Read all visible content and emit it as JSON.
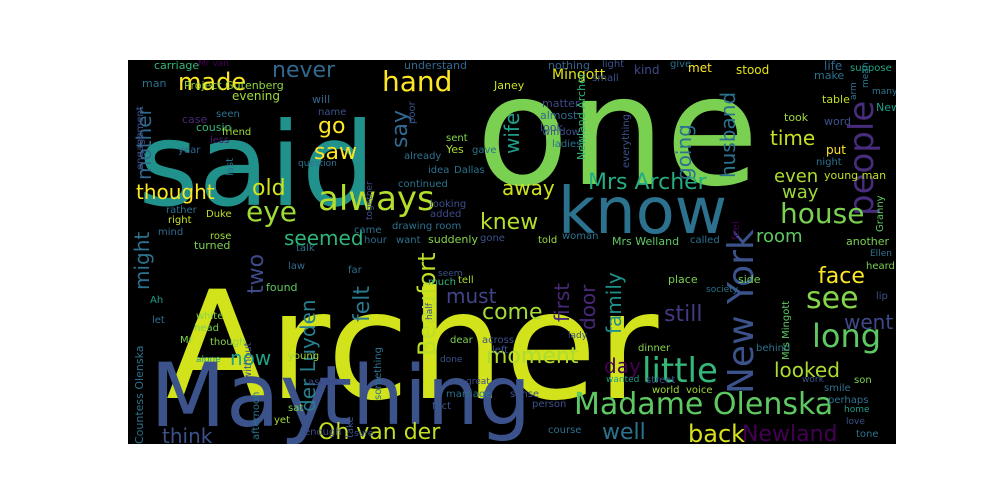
{
  "words": [
    {
      "text": "Archer",
      "color": "#d2e21b"
    },
    {
      "text": "said",
      "color": "#21918c"
    },
    {
      "text": "one",
      "color": "#7ad151"
    },
    {
      "text": "May",
      "color": "#3b528b"
    },
    {
      "text": "thing",
      "color": "#3b528b"
    },
    {
      "text": "know",
      "color": "#2c728e"
    },
    {
      "text": "Madame Olenska",
      "color": "#5ec962"
    },
    {
      "text": "little",
      "color": "#35b779"
    },
    {
      "text": "always",
      "color": "#b5de2b"
    },
    {
      "text": "people",
      "color": "#472d7b"
    },
    {
      "text": "New York",
      "color": "#3b528b"
    },
    {
      "text": "made",
      "color": "#fde725"
    },
    {
      "text": "hand",
      "color": "#fde725"
    },
    {
      "text": "never",
      "color": "#31688e"
    },
    {
      "text": "house",
      "color": "#7ad151"
    },
    {
      "text": "eye",
      "color": "#a0da39"
    },
    {
      "text": "see",
      "color": "#86d549"
    },
    {
      "text": "long",
      "color": "#5ec962"
    },
    {
      "text": "well",
      "color": "#2c728e"
    },
    {
      "text": "back",
      "color": "#d8e219"
    },
    {
      "text": "Newland",
      "color": "#440154"
    },
    {
      "text": "Oh van der",
      "color": "#c2df23"
    },
    {
      "text": "think",
      "color": "#3b528b"
    },
    {
      "text": "Mrs Archer",
      "color": "#25ac82"
    },
    {
      "text": "thought",
      "color": "#fde725"
    },
    {
      "text": "knew",
      "color": "#b5de2b"
    },
    {
      "text": "Beaufort",
      "color": "#bddf26"
    },
    {
      "text": "moment",
      "color": "#addc30"
    },
    {
      "text": "come",
      "color": "#a5db36"
    },
    {
      "text": "face",
      "color": "#fde725"
    },
    {
      "text": "went",
      "color": "#3e4989"
    },
    {
      "text": "looked",
      "color": "#addc30"
    },
    {
      "text": "still",
      "color": "#443983"
    },
    {
      "text": "mother",
      "color": "#31688e"
    },
    {
      "text": "might",
      "color": "#2c728e"
    },
    {
      "text": "husband",
      "color": "#2c728e"
    },
    {
      "text": "go",
      "color": "#fde725"
    },
    {
      "text": "saw",
      "color": "#fde725"
    },
    {
      "text": "say",
      "color": "#31688e"
    },
    {
      "text": "wife",
      "color": "#1f9e89"
    },
    {
      "text": "going",
      "color": "#2c728e"
    },
    {
      "text": "time",
      "color": "#c8e020"
    },
    {
      "text": "even",
      "color": "#addc30"
    },
    {
      "text": "way",
      "color": "#9bd93c"
    },
    {
      "text": "away",
      "color": "#cde11d"
    },
    {
      "text": "old",
      "color": "#d2e21b"
    },
    {
      "text": "seemed",
      "color": "#2fb47c"
    },
    {
      "text": "two",
      "color": "#3e4989"
    },
    {
      "text": "now",
      "color": "#1fa187"
    },
    {
      "text": "felt",
      "color": "#2a788e"
    },
    {
      "text": "must",
      "color": "#414487"
    },
    {
      "text": "first",
      "color": "#482878"
    },
    {
      "text": "door",
      "color": "#482878"
    },
    {
      "text": "family",
      "color": "#21918c"
    },
    {
      "text": "day",
      "color": "#440154"
    },
    {
      "text": "der Luyden",
      "color": "#277f8e"
    },
    {
      "text": "room",
      "color": "#5ec962"
    },
    {
      "text": "Mingott",
      "color": "#dfe318"
    },
    {
      "text": "nothing",
      "color": "#33638d"
    },
    {
      "text": "kind",
      "color": "#3e4989"
    },
    {
      "text": "stood",
      "color": "#e2e418"
    },
    {
      "text": "life",
      "color": "#31688e"
    },
    {
      "text": "suppose",
      "color": "#20a486"
    },
    {
      "text": "carriage",
      "color": "#35b779"
    },
    {
      "text": "Mr van",
      "color": "#440154"
    },
    {
      "text": "understand",
      "color": "#31688e"
    },
    {
      "text": "light",
      "color": "#3b528b"
    },
    {
      "text": "give",
      "color": "#2c728e"
    },
    {
      "text": "met",
      "color": "#fde725"
    },
    {
      "text": "Project Gutenberg",
      "color": "#8fd744"
    },
    {
      "text": "man",
      "color": "#2c728e"
    },
    {
      "text": "Janey",
      "color": "#cde11d"
    },
    {
      "text": "evening",
      "color": "#a0da39"
    },
    {
      "text": "will",
      "color": "#31688e"
    },
    {
      "text": "make",
      "color": "#2c728e"
    },
    {
      "text": "many",
      "color": "#2a788e"
    },
    {
      "text": "matter",
      "color": "#3e4989"
    },
    {
      "text": "almost",
      "color": "#31688e"
    },
    {
      "text": "look",
      "color": "#3b528b"
    },
    {
      "text": "small",
      "color": "#3b528b"
    },
    {
      "text": "case",
      "color": "#482878"
    },
    {
      "text": "seen",
      "color": "#2c728e"
    },
    {
      "text": "cousin",
      "color": "#35b779"
    },
    {
      "text": "friend",
      "color": "#a0da39"
    },
    {
      "text": "less",
      "color": "#481a6c"
    },
    {
      "text": "name",
      "color": "#3b528b"
    },
    {
      "text": "question",
      "color": "#2c728e"
    },
    {
      "text": "word",
      "color": "#3b528b"
    },
    {
      "text": "table",
      "color": "#c2df23"
    },
    {
      "text": "New",
      "color": "#1f9e89"
    },
    {
      "text": "took",
      "color": "#a0da39"
    },
    {
      "text": "put",
      "color": "#fde725"
    },
    {
      "text": "night",
      "color": "#2c728e"
    },
    {
      "text": "young man",
      "color": "#bddf26"
    },
    {
      "text": "Granny",
      "color": "#5ec962"
    },
    {
      "text": "Yes",
      "color": "#addc30"
    },
    {
      "text": "window",
      "color": "#3b528b"
    },
    {
      "text": "ladies",
      "color": "#2c728e"
    },
    {
      "text": "sent",
      "color": "#86d549"
    },
    {
      "text": "already",
      "color": "#2c728e"
    },
    {
      "text": "gave",
      "color": "#2c728e"
    },
    {
      "text": "year",
      "color": "#31688e"
    },
    {
      "text": "idea",
      "color": "#2c728e"
    },
    {
      "text": "Dallas",
      "color": "#2c728e"
    },
    {
      "text": "continued",
      "color": "#2c728e"
    },
    {
      "text": "rather",
      "color": "#2c728e"
    },
    {
      "text": "Duke",
      "color": "#c2df23"
    },
    {
      "text": "right",
      "color": "#cde11d"
    },
    {
      "text": "looking",
      "color": "#3b528b"
    },
    {
      "text": "added",
      "color": "#3e4989"
    },
    {
      "text": "drawing room",
      "color": "#2c728e"
    },
    {
      "text": "came",
      "color": "#2c728e"
    },
    {
      "text": "hour",
      "color": "#31688e"
    },
    {
      "text": "mind",
      "color": "#31688e"
    },
    {
      "text": "rose",
      "color": "#a0da39"
    },
    {
      "text": "talk",
      "color": "#2c728e"
    },
    {
      "text": "want",
      "color": "#2c728e"
    },
    {
      "text": "suddenly",
      "color": "#86d549"
    },
    {
      "text": "gone",
      "color": "#3b528b"
    },
    {
      "text": "told",
      "color": "#a0da39"
    },
    {
      "text": "woman",
      "color": "#2c728e"
    },
    {
      "text": "Mrs Welland",
      "color": "#5ec962"
    },
    {
      "text": "called",
      "color": "#2c728e"
    },
    {
      "text": "another",
      "color": "#7ad151"
    },
    {
      "text": "Ellen",
      "color": "#2c728e"
    },
    {
      "text": "heard",
      "color": "#7ad151"
    },
    {
      "text": "turned",
      "color": "#7ad151"
    },
    {
      "text": "law",
      "color": "#31688e"
    },
    {
      "text": "far",
      "color": "#2c728e"
    },
    {
      "text": "seem",
      "color": "#3b528b"
    },
    {
      "text": "much",
      "color": "#35b779"
    },
    {
      "text": "tell",
      "color": "#addc30"
    },
    {
      "text": "place",
      "color": "#7ad151"
    },
    {
      "text": "side",
      "color": "#7ad151"
    },
    {
      "text": "society",
      "color": "#2c728e"
    },
    {
      "text": "found",
      "color": "#5ec962"
    },
    {
      "text": "Ah",
      "color": "#1f9e89"
    },
    {
      "text": "white",
      "color": "#86d549"
    },
    {
      "text": "let",
      "color": "#2c728e"
    },
    {
      "text": "head",
      "color": "#7ad151"
    },
    {
      "text": "Mr",
      "color": "#7ad151"
    },
    {
      "text": "though",
      "color": "#86d549"
    },
    {
      "text": "alone",
      "color": "#1f9e89"
    },
    {
      "text": "young",
      "color": "#a0da39"
    },
    {
      "text": "dear",
      "color": "#7ad151"
    },
    {
      "text": "across",
      "color": "#3b528b"
    },
    {
      "text": "lady",
      "color": "#3b528b"
    },
    {
      "text": "left",
      "color": "#3b528b"
    },
    {
      "text": "dinner",
      "color": "#86d549"
    },
    {
      "text": "behind",
      "color": "#2c728e"
    },
    {
      "text": "great",
      "color": "#3e4989"
    },
    {
      "text": "wanted",
      "color": "#1f9e89"
    },
    {
      "text": "street",
      "color": "#3b528b"
    },
    {
      "text": "world",
      "color": "#a0da39"
    },
    {
      "text": "voice",
      "color": "#a0da39"
    },
    {
      "text": "smile",
      "color": "#2c728e"
    },
    {
      "text": "son",
      "color": "#7ad151"
    },
    {
      "text": "work",
      "color": "#3b528b"
    },
    {
      "text": "asked",
      "color": "#3e4989"
    },
    {
      "text": "marriage",
      "color": "#2c728e"
    },
    {
      "text": "sense",
      "color": "#3b528b"
    },
    {
      "text": "person",
      "color": "#3b528b"
    },
    {
      "text": "course",
      "color": "#2c728e"
    },
    {
      "text": "perhaps",
      "color": "#2c728e"
    },
    {
      "text": "home",
      "color": "#1f9e89"
    },
    {
      "text": "love",
      "color": "#3b528b"
    },
    {
      "text": "tone",
      "color": "#2c728e"
    },
    {
      "text": "sat",
      "color": "#7ad151"
    },
    {
      "text": "yet",
      "color": "#a0da39"
    },
    {
      "text": "enough",
      "color": "#3e4989"
    },
    {
      "text": "sure",
      "color": "#3b528b"
    },
    {
      "text": "fact",
      "color": "#3b528b"
    },
    {
      "text": "done",
      "color": "#3b528b"
    },
    {
      "text": "lip",
      "color": "#3b528b"
    },
    {
      "text": "Countess Olenska",
      "color": "#2c728e"
    },
    {
      "text": "engagement",
      "color": "#3b528b"
    },
    {
      "text": "afternoon",
      "color": "#2c728e"
    },
    {
      "text": "without",
      "color": "#3b528b"
    },
    {
      "text": "something",
      "color": "#2c728e"
    },
    {
      "text": "Mrs Mingott",
      "color": "#5ec962"
    },
    {
      "text": "Newland Archer",
      "color": "#35b779"
    },
    {
      "text": "everything",
      "color": "#3b528b"
    },
    {
      "text": "together",
      "color": "#3b528b"
    },
    {
      "text": "last",
      "color": "#2c728e"
    },
    {
      "text": "half",
      "color": "#3b528b"
    },
    {
      "text": "take",
      "color": "#3b528b"
    },
    {
      "text": "feel",
      "color": "#440154"
    },
    {
      "text": "poor",
      "color": "#3b528b"
    },
    {
      "text": "arm",
      "color": "#2c728e"
    },
    {
      "text": "mean",
      "color": "#2c728e"
    }
  ]
}
